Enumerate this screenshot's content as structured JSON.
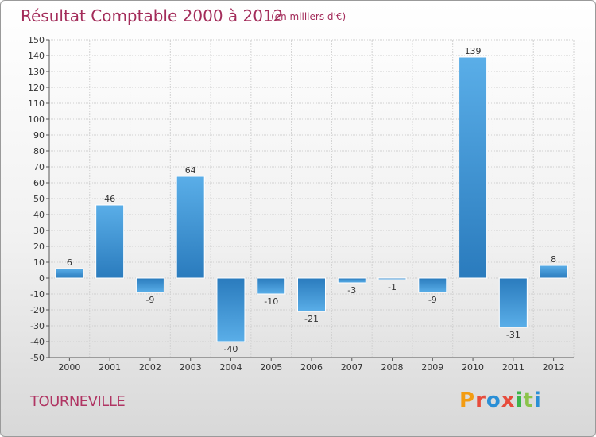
{
  "chart_data": {
    "type": "bar",
    "title": "Résultat Comptable 2000 à 2012",
    "subtitle": "(en milliers d'€)",
    "categories": [
      "2000",
      "2001",
      "2002",
      "2003",
      "2004",
      "2005",
      "2006",
      "2007",
      "2008",
      "2009",
      "2010",
      "2011",
      "2012"
    ],
    "values": [
      6,
      46,
      -9,
      64,
      -40,
      -10,
      -21,
      -3,
      -1,
      -9,
      139,
      -31,
      8
    ],
    "ylim": [
      -50,
      150
    ],
    "ytick_step": 10,
    "xlabel": "",
    "ylabel": "",
    "grid": true,
    "colors": {
      "bar_light": "#5aaee8",
      "bar_dark": "#2a7bbd",
      "grid": "#d0d0d0",
      "axis": "#555555"
    }
  },
  "footer": {
    "city": "TOURNEVILLE",
    "brand": "Proxiti",
    "brand_colors": [
      "#f39c12",
      "#e74c3c",
      "#2a8fd6",
      "#e74c3c",
      "#3db54a",
      "#8bc34a",
      "#2a8fd6"
    ]
  }
}
